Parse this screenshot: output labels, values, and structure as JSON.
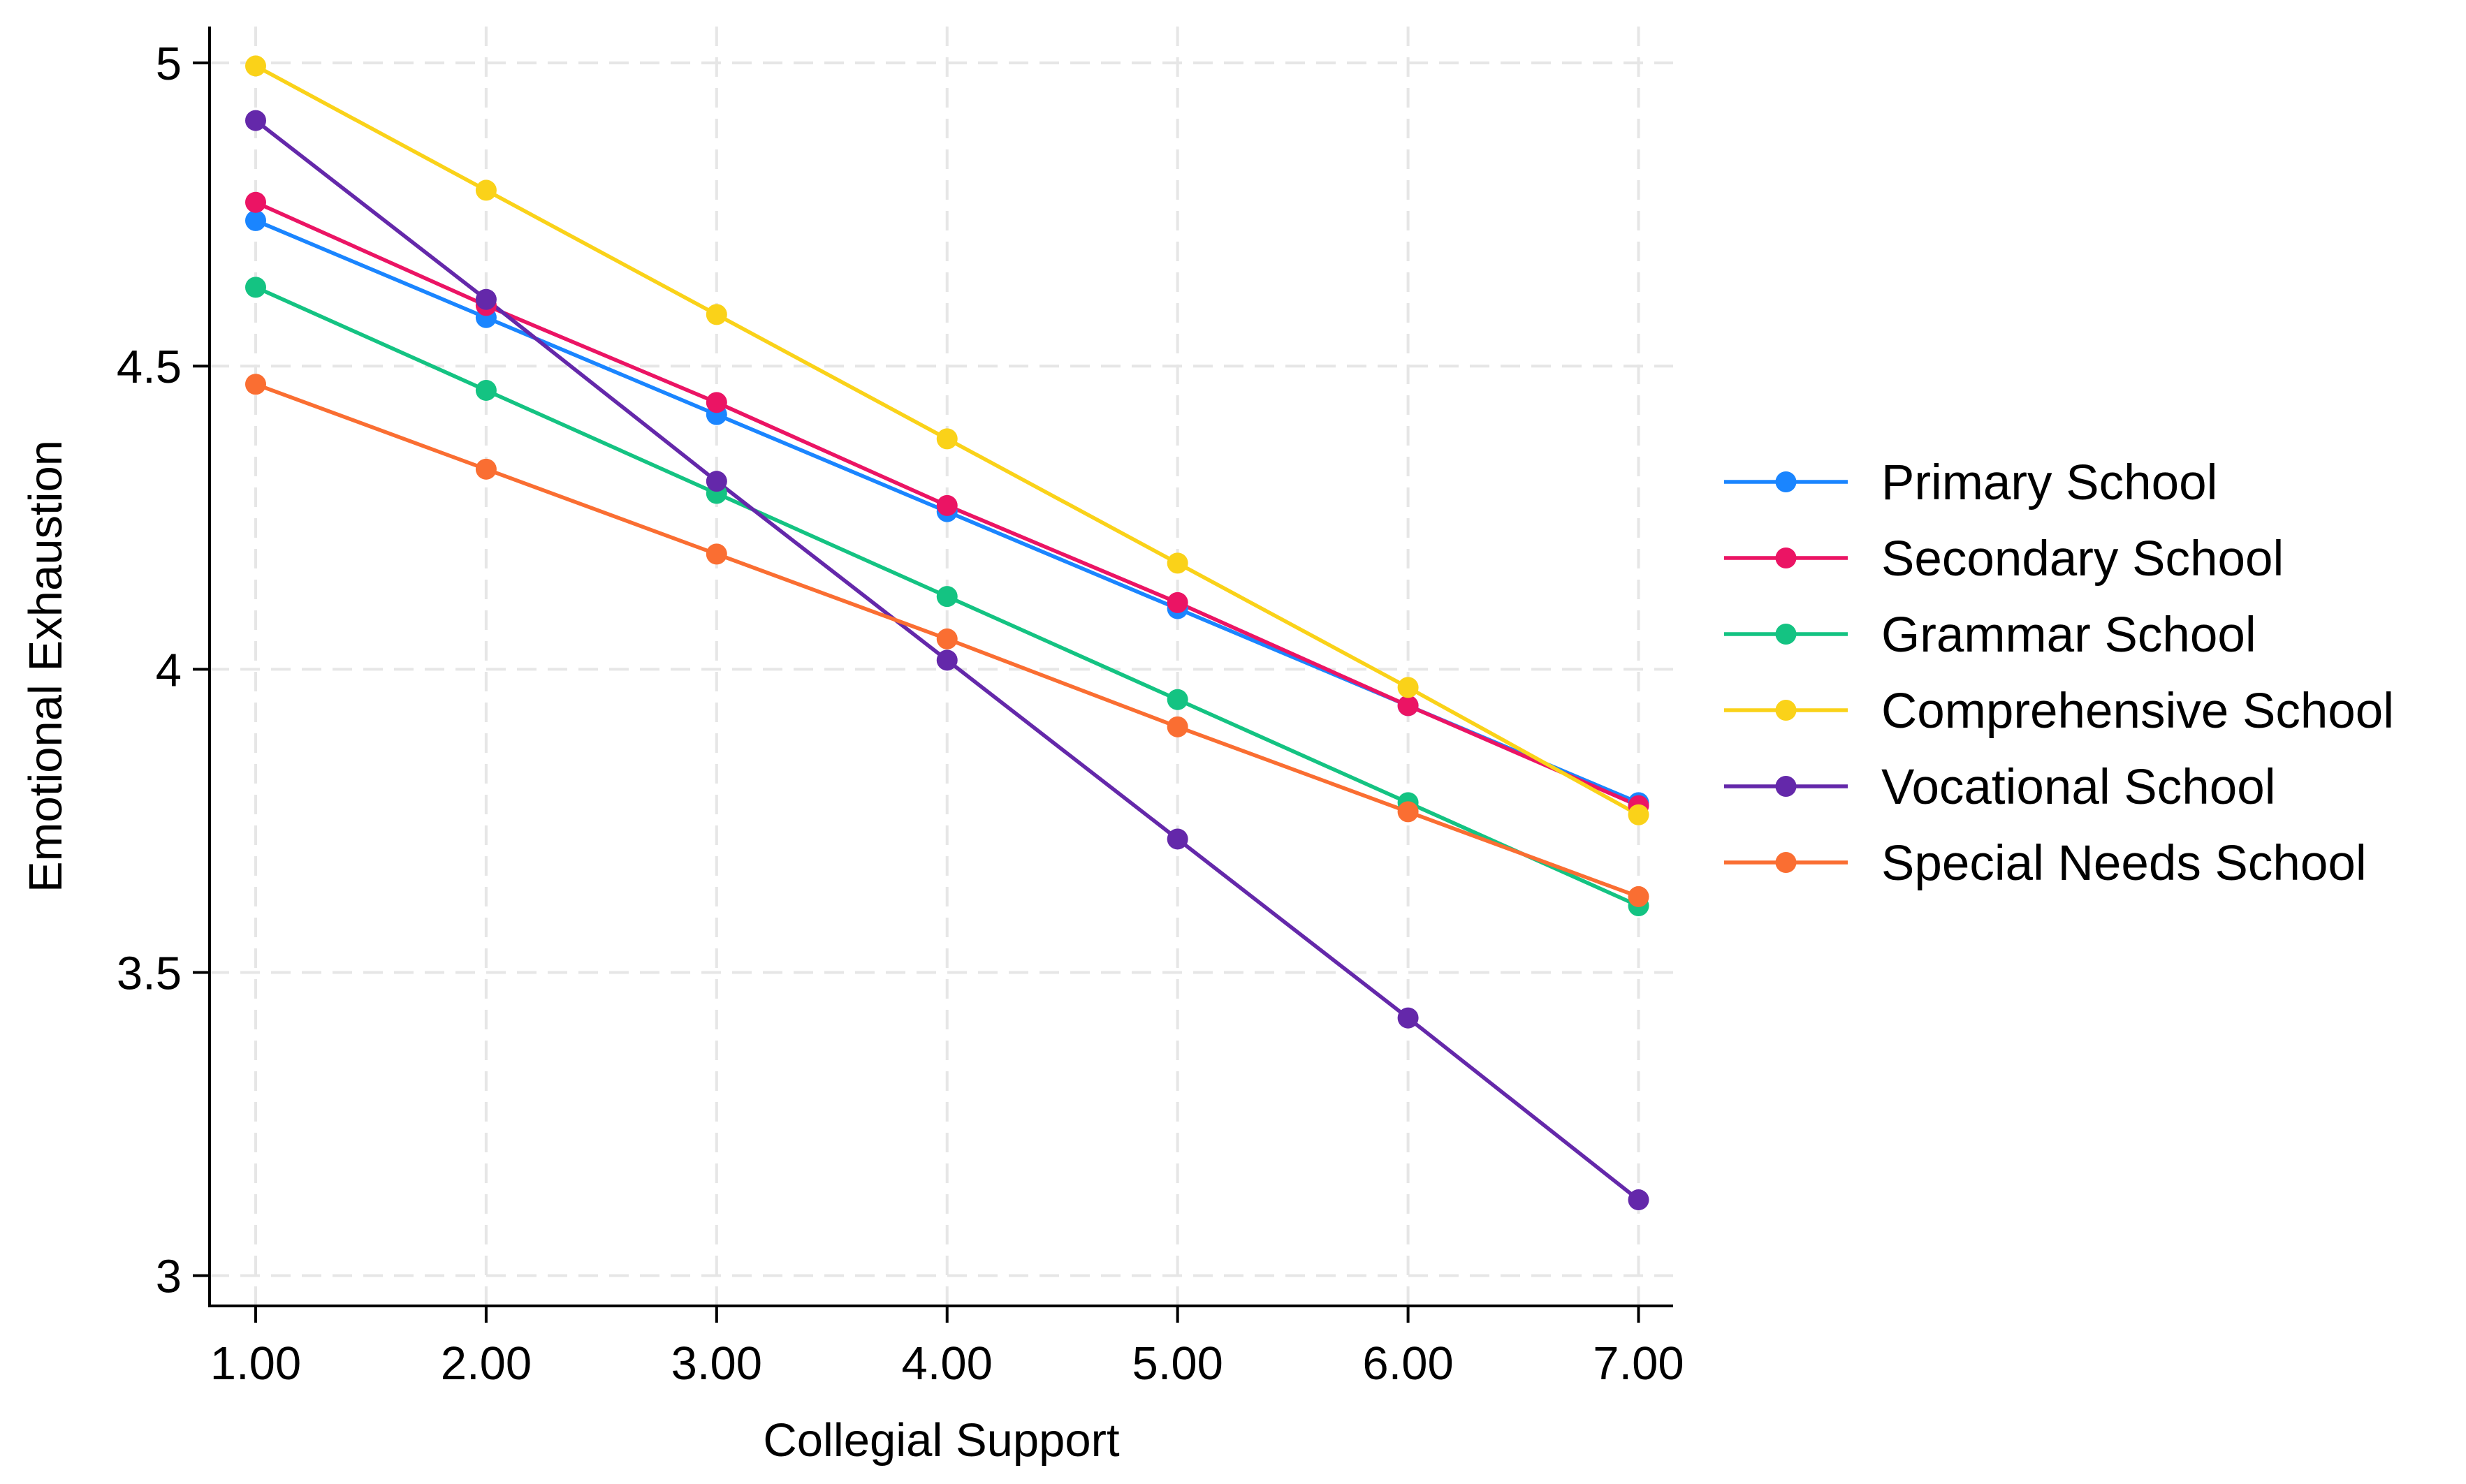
{
  "chart_data": {
    "type": "line",
    "title": "",
    "xlabel": "Collegial Support",
    "ylabel": "Emotional Exhaustion",
    "x": [
      1,
      2,
      3,
      4,
      5,
      6,
      7
    ],
    "x_tick_labels": [
      "1.00",
      "2.00",
      "3.00",
      "4.00",
      "5.00",
      "6.00",
      "7.00"
    ],
    "y_ticks": [
      3,
      3.5,
      4,
      4.5,
      5
    ],
    "y_tick_labels": [
      "3",
      "3.5",
      "4",
      "4.5",
      "5"
    ],
    "xlim": [
      0.8,
      7.15
    ],
    "ylim": [
      2.95,
      5.06
    ],
    "grid": true,
    "legend_position": "right",
    "series": [
      {
        "name": "Primary School",
        "color": "#1a85ff",
        "values": [
          4.74,
          4.58,
          4.42,
          4.26,
          4.1,
          3.94,
          3.78
        ]
      },
      {
        "name": "Secondary School",
        "color": "#eb1464",
        "values": [
          4.77,
          4.6,
          4.44,
          4.27,
          4.11,
          3.94,
          3.775
        ]
      },
      {
        "name": "Grammar School",
        "color": "#14c382",
        "values": [
          4.63,
          4.46,
          4.29,
          4.12,
          3.95,
          3.78,
          3.61
        ]
      },
      {
        "name": "Comprehensive School",
        "color": "#fad219",
        "values": [
          4.995,
          4.79,
          4.585,
          4.38,
          4.175,
          3.97,
          3.76
        ]
      },
      {
        "name": "Vocational School",
        "color": "#6428aa",
        "values": [
          4.905,
          4.61,
          4.31,
          4.015,
          3.72,
          3.425,
          3.125
        ]
      },
      {
        "name": "Special Needs School",
        "color": "#fa6e32",
        "values": [
          4.47,
          4.33,
          4.19,
          4.05,
          3.905,
          3.765,
          3.625
        ]
      }
    ]
  }
}
